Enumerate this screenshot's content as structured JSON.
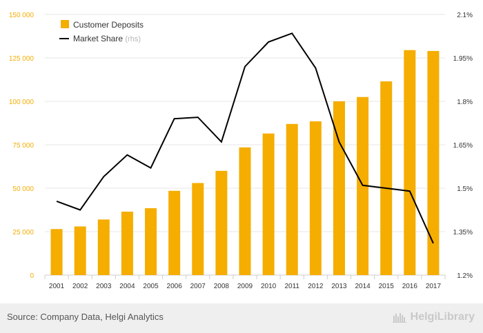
{
  "chart_data": {
    "type": "bar+line",
    "categories": [
      "2001",
      "2002",
      "2003",
      "2004",
      "2005",
      "2006",
      "2007",
      "2008",
      "2009",
      "2010",
      "2011",
      "2012",
      "2013",
      "2014",
      "2015",
      "2016",
      "2017"
    ],
    "series": [
      {
        "name": "Customer Deposits",
        "type": "bar",
        "axis": "left",
        "color": "#F5AD00",
        "values": [
          26500,
          28000,
          32000,
          36500,
          38500,
          48500,
          53000,
          60000,
          73500,
          81500,
          87000,
          88500,
          100000,
          102500,
          111500,
          129500,
          129000
        ]
      },
      {
        "name": "Market Share",
        "name_suffix": "(rhs)",
        "type": "line",
        "axis": "right",
        "color": "#000000",
        "values": [
          1.455,
          1.425,
          1.54,
          1.615,
          1.57,
          1.74,
          1.745,
          1.66,
          1.92,
          2.005,
          2.035,
          1.915,
          1.66,
          1.51,
          1.5,
          1.49,
          1.31
        ]
      }
    ],
    "yleft": {
      "lim": [
        0,
        150000
      ],
      "ticks": [
        0,
        25000,
        50000,
        75000,
        100000,
        125000,
        150000
      ],
      "tick_labels": [
        "0",
        "25 000",
        "50 000",
        "75 000",
        "100 000",
        "125 000",
        "150 000"
      ],
      "color": "#F5AD00"
    },
    "yright": {
      "lim": [
        1.2,
        2.1
      ],
      "ticks": [
        1.2,
        1.35,
        1.5,
        1.65,
        1.8,
        1.95,
        2.1
      ],
      "tick_labels": [
        "1.2%",
        "1.35%",
        "1.5%",
        "1.65%",
        "1.8%",
        "1.95%",
        "2.1%"
      ]
    },
    "grid": true,
    "legend": "top-left"
  },
  "footer": {
    "source": "Source: Company Data, Helgi Analytics",
    "logo_text": "HelgiLibrary"
  }
}
